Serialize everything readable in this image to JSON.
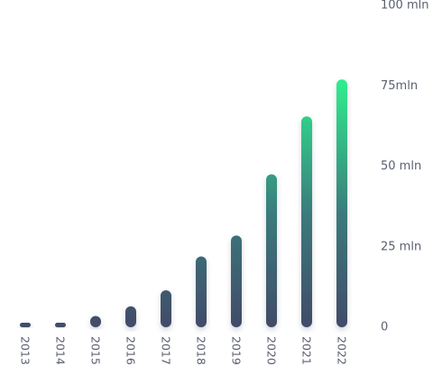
{
  "chart_data": {
    "type": "bar",
    "title": "",
    "xlabel": "",
    "ylabel": "",
    "categories": [
      "2013",
      "2014",
      "2015",
      "2016",
      "2017",
      "2018",
      "2019",
      "2020",
      "2021",
      "2022"
    ],
    "values": [
      0.6,
      1.3,
      3.5,
      6.5,
      11.5,
      22,
      28.5,
      47.5,
      65.5,
      77
    ],
    "ylim": [
      0,
      100
    ],
    "y_ticks": [
      {
        "value": 0,
        "label": "0"
      },
      {
        "value": 25,
        "label": "25 mln"
      },
      {
        "value": 50,
        "label": "50 mln"
      },
      {
        "value": 75,
        "label": "75mln"
      },
      {
        "value": 100,
        "label": "100 mln"
      }
    ],
    "grid": false,
    "legend": "none",
    "x_tick_rotation": 90,
    "colors": {
      "bar_bottom": "#424b68",
      "bar_top": "#2ff08e",
      "tick_text": "#5b6070"
    }
  }
}
